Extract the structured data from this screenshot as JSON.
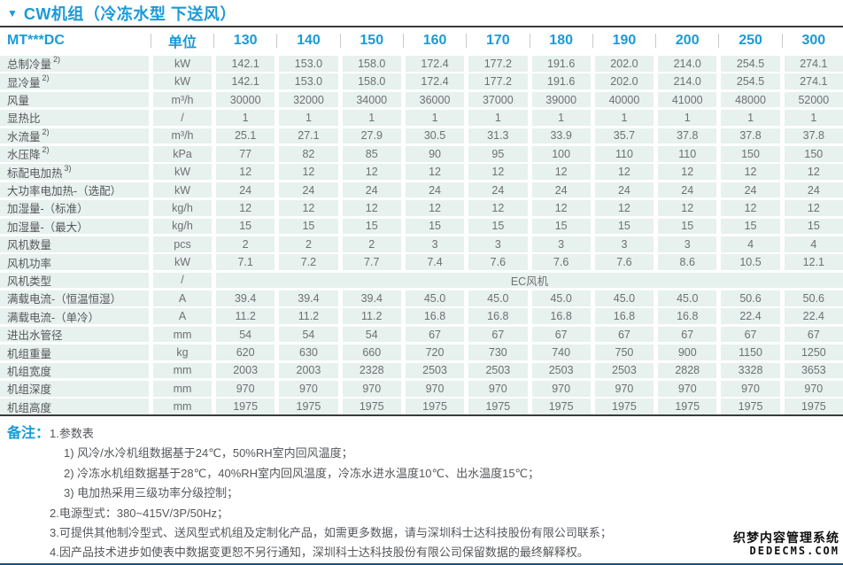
{
  "title": {
    "marker": "▼",
    "text": "CW机组（冷冻水型 下送风）"
  },
  "table": {
    "header": {
      "model": "MT***DC",
      "unit_label": "单位",
      "columns": [
        "130",
        "140",
        "150",
        "160",
        "170",
        "180",
        "190",
        "200",
        "250",
        "300"
      ]
    },
    "rows": [
      {
        "label": "总制冷量",
        "sup": "2)",
        "unit": "kW",
        "values": [
          "142.1",
          "153.0",
          "158.0",
          "172.4",
          "177.2",
          "191.6",
          "202.0",
          "214.0",
          "254.5",
          "274.1"
        ]
      },
      {
        "label": "显冷量",
        "sup": "2)",
        "unit": "kW",
        "values": [
          "142.1",
          "153.0",
          "158.0",
          "172.4",
          "177.2",
          "191.6",
          "202.0",
          "214.0",
          "254.5",
          "274.1"
        ]
      },
      {
        "label": "风量",
        "unit": "m³/h",
        "values": [
          "30000",
          "32000",
          "34000",
          "36000",
          "37000",
          "39000",
          "40000",
          "41000",
          "48000",
          "52000"
        ]
      },
      {
        "label": "显热比",
        "unit": "/",
        "values": [
          "1",
          "1",
          "1",
          "1",
          "1",
          "1",
          "1",
          "1",
          "1",
          "1"
        ]
      },
      {
        "label": "水流量",
        "sup": "2)",
        "unit": "m³/h",
        "values": [
          "25.1",
          "27.1",
          "27.9",
          "30.5",
          "31.3",
          "33.9",
          "35.7",
          "37.8",
          "37.8",
          "37.8"
        ]
      },
      {
        "label": "水压降",
        "sup": "2)",
        "unit": "kPa",
        "values": [
          "77",
          "82",
          "85",
          "90",
          "95",
          "100",
          "110",
          "110",
          "150",
          "150"
        ]
      },
      {
        "label": "标配电加热",
        "sup": "3)",
        "unit": "kW",
        "values": [
          "12",
          "12",
          "12",
          "12",
          "12",
          "12",
          "12",
          "12",
          "12",
          "12"
        ]
      },
      {
        "label": "大功率电加热-（选配）",
        "unit": "kW",
        "values": [
          "24",
          "24",
          "24",
          "24",
          "24",
          "24",
          "24",
          "24",
          "24",
          "24"
        ]
      },
      {
        "label": "加湿量-（标准）",
        "unit": "kg/h",
        "values": [
          "12",
          "12",
          "12",
          "12",
          "12",
          "12",
          "12",
          "12",
          "12",
          "12"
        ]
      },
      {
        "label": "加湿量-（最大）",
        "unit": "kg/h",
        "values": [
          "15",
          "15",
          "15",
          "15",
          "15",
          "15",
          "15",
          "15",
          "15",
          "15"
        ]
      },
      {
        "label": "风机数量",
        "unit": "pcs",
        "values": [
          "2",
          "2",
          "2",
          "3",
          "3",
          "3",
          "3",
          "3",
          "4",
          "4"
        ]
      },
      {
        "label": "风机功率",
        "unit": "kW",
        "values": [
          "7.1",
          "7.2",
          "7.7",
          "7.4",
          "7.6",
          "7.6",
          "7.6",
          "8.6",
          "10.5",
          "12.1"
        ]
      },
      {
        "label": "风机类型",
        "unit": "/",
        "merged": "EC风机"
      },
      {
        "label": "满载电流-（恒温恒湿）",
        "unit": "A",
        "values": [
          "39.4",
          "39.4",
          "39.4",
          "45.0",
          "45.0",
          "45.0",
          "45.0",
          "45.0",
          "50.6",
          "50.6"
        ]
      },
      {
        "label": "满载电流-（单冷）",
        "unit": "A",
        "values": [
          "11.2",
          "11.2",
          "11.2",
          "16.8",
          "16.8",
          "16.8",
          "16.8",
          "16.8",
          "22.4",
          "22.4"
        ]
      },
      {
        "label": "进出水管径",
        "unit": "mm",
        "values": [
          "54",
          "54",
          "54",
          "67",
          "67",
          "67",
          "67",
          "67",
          "67",
          "67"
        ]
      },
      {
        "label": "机组重量",
        "unit": "kg",
        "values": [
          "620",
          "630",
          "660",
          "720",
          "730",
          "740",
          "750",
          "900",
          "1150",
          "1250"
        ]
      },
      {
        "label": "机组宽度",
        "unit": "mm",
        "values": [
          "2003",
          "2003",
          "2328",
          "2503",
          "2503",
          "2503",
          "2503",
          "2828",
          "3328",
          "3653"
        ]
      },
      {
        "label": "机组深度",
        "unit": "mm",
        "values": [
          "970",
          "970",
          "970",
          "970",
          "970",
          "970",
          "970",
          "970",
          "970",
          "970"
        ]
      },
      {
        "label": "机组高度",
        "unit": "mm",
        "values": [
          "1975",
          "1975",
          "1975",
          "1975",
          "1975",
          "1975",
          "1975",
          "1975",
          "1975",
          "1975"
        ]
      }
    ]
  },
  "notes": {
    "label": "备注：",
    "items": [
      {
        "text": "1.参数表",
        "subitems": [
          "1) 风冷/水冷机组数据基于24℃，50%RH室内回风温度；",
          "2) 冷冻水机组数据基于28℃，40%RH室内回风温度，冷冻水进水温度10℃、出水温度15℃；",
          "3) 电加热采用三级功率分级控制；"
        ]
      },
      {
        "text": "2.电源型式：380~415V/3P/50Hz；",
        "subitems": []
      },
      {
        "text": "3.可提供其他制冷型式、送风型式机组及定制化产品，如需更多数据，请与深圳科士达科技股份有限公司联系；",
        "subitems": []
      },
      {
        "text": "4.因产品技术进步如使表中数据变更恕不另行通知，深圳科士达科技股份有限公司保留数据的最终解释权。",
        "subitems": []
      }
    ]
  },
  "watermark": {
    "line1": "织梦内容管理系统",
    "line2": "DEDECMS.COM"
  },
  "colors": {
    "accent_blue": "#1c9ad6",
    "cell_background": "#e7f1ee",
    "label_text": "#55575a",
    "value_text": "#6e7072",
    "dark_rule": "#3b3b3d",
    "bottom_rule": "#1d4f7e"
  }
}
